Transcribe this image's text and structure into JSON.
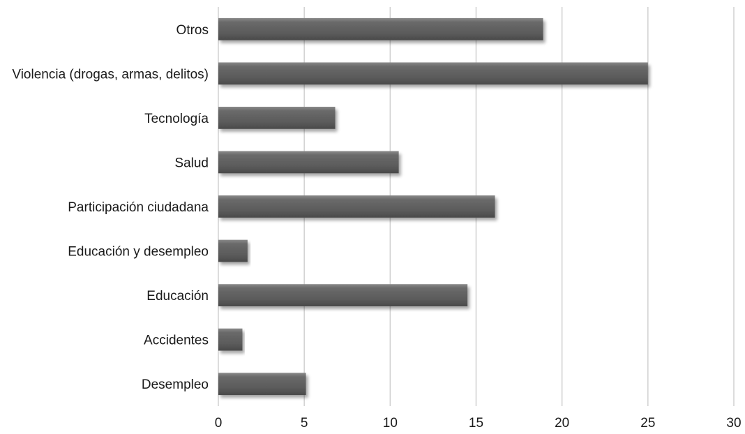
{
  "chart_data": {
    "type": "bar",
    "orientation": "horizontal",
    "title": "",
    "xlabel": "",
    "ylabel": "",
    "categories": [
      "Otros",
      "Violencia (drogas, armas, delitos)",
      "Tecnología",
      "Salud",
      "Participación ciudadana",
      "Educación y desempleo",
      "Educación",
      "Accidentes",
      "Desempleo"
    ],
    "values": [
      18.9,
      25,
      6.8,
      10.5,
      16.1,
      1.7,
      14.5,
      1.4,
      5.1
    ],
    "xlim": [
      0,
      30
    ],
    "xticks": [
      "0",
      "5",
      "10",
      "15",
      "20",
      "25",
      "30"
    ],
    "grid": true,
    "legend": "none",
    "bar_color": "#5f5f5f",
    "grid_color": "#d0d0d0"
  }
}
